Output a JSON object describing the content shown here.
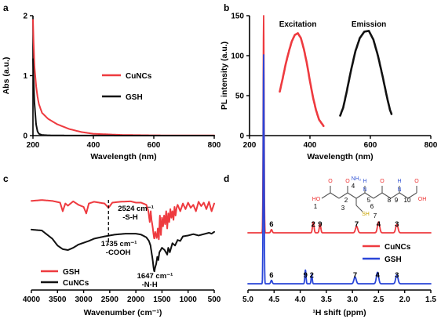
{
  "colors": {
    "red": "#ee3a3f",
    "black": "#111111",
    "blue": "#2a46d8"
  },
  "panels": {
    "a": {
      "label": "a",
      "xlabel": "Wavelength (nm)",
      "ylabel": "Abs (a.u.)",
      "xticks": [
        "200",
        "400",
        "600",
        "800"
      ],
      "yticks": [
        "0",
        "1",
        "2"
      ]
    },
    "b": {
      "label": "b",
      "xlabel": "Wavelength (nm)",
      "ylabel": "PL intensity (a.u.)",
      "xticks": [
        "200",
        "400",
        "600",
        "800"
      ],
      "yticks": [
        "0",
        "50",
        "100",
        "150"
      ]
    },
    "c": {
      "label": "c",
      "xlabel": "Wavenumber (cm⁻¹)",
      "xticks": [
        "4000",
        "3500",
        "3000",
        "2500",
        "2000",
        "1500",
        "1000",
        "500"
      ]
    },
    "d": {
      "label": "d",
      "xlabel": "¹H shift (ppm)",
      "xticks": [
        "5.0",
        "4.5",
        "4.0",
        "3.5",
        "3.0",
        "2.5",
        "2.0",
        "1.5"
      ]
    }
  },
  "chart_data": [
    {
      "panel": "a",
      "type": "line",
      "xlabel": "Wavelength (nm)",
      "ylabel": "Abs (a.u.)",
      "xlim": [
        200,
        800
      ],
      "ylim": [
        0,
        2
      ],
      "grid": false,
      "legend": "right",
      "series": [
        {
          "name": "CuNCs",
          "color": "red",
          "x": [
            200,
            202,
            205,
            210,
            215,
            220,
            230,
            250,
            280,
            320,
            360,
            400,
            500,
            600,
            700,
            800
          ],
          "y": [
            1.93,
            1.55,
            1.15,
            0.85,
            0.65,
            0.52,
            0.38,
            0.28,
            0.19,
            0.11,
            0.06,
            0.03,
            0.01,
            0.005,
            0.003,
            0.002
          ]
        },
        {
          "name": "GSH",
          "color": "black",
          "x": [
            200,
            202,
            205,
            210,
            215,
            220,
            230,
            250,
            300,
            400,
            600,
            800
          ],
          "y": [
            1.28,
            0.95,
            0.55,
            0.2,
            0.07,
            0.03,
            0.01,
            0.005,
            0.002,
            0.001,
            0.0,
            0.0
          ]
        }
      ]
    },
    {
      "panel": "b",
      "type": "line",
      "xlabel": "Wavelength (nm)",
      "ylabel": "PL intensity (a.u.)",
      "xlim": [
        200,
        800
      ],
      "ylim": [
        0,
        150
      ],
      "grid": false,
      "series": [
        {
          "name": "Excitation",
          "color": "red",
          "x": [
            300,
            310,
            320,
            330,
            340,
            350,
            360,
            370,
            380,
            390,
            400,
            410,
            420,
            430,
            445
          ],
          "y": [
            55,
            72,
            90,
            105,
            118,
            126,
            128,
            122,
            108,
            90,
            68,
            48,
            32,
            20,
            12
          ]
        },
        {
          "name": "Emission",
          "color": "black",
          "x": [
            500,
            510,
            520,
            535,
            550,
            565,
            580,
            595,
            610,
            625,
            640,
            655,
            665,
            670
          ],
          "y": [
            25,
            35,
            52,
            80,
            105,
            122,
            130,
            131,
            120,
            100,
            75,
            48,
            32,
            27
          ]
        }
      ]
    },
    {
      "panel": "c",
      "type": "line",
      "xlabel": "Wavenumber (cm⁻¹)",
      "xlim": [
        4000,
        500
      ],
      "grid": false,
      "legend": "bottom-left",
      "series": [
        {
          "name": "GSH",
          "color": "red",
          "x": [
            4000,
            3800,
            3600,
            3450,
            3400,
            3350,
            3300,
            3200,
            3100,
            3000,
            2950,
            2900,
            2800,
            2700,
            2600,
            2524,
            2450,
            2300,
            2100,
            2000,
            1900,
            1800,
            1760,
            1735,
            1715,
            1700,
            1680,
            1660,
            1647,
            1630,
            1600,
            1580,
            1560,
            1540,
            1520,
            1500,
            1480,
            1460,
            1440,
            1420,
            1400,
            1380,
            1360,
            1340,
            1320,
            1300,
            1280,
            1260,
            1240,
            1220,
            1200,
            1150,
            1100,
            1050,
            1000,
            950,
            900,
            850,
            800,
            750,
            700,
            650,
            600,
            550,
            500
          ],
          "y": [
            0.94,
            0.96,
            0.94,
            0.9,
            0.7,
            0.88,
            0.83,
            0.93,
            0.85,
            0.8,
            0.65,
            0.88,
            0.92,
            0.9,
            0.88,
            0.78,
            0.9,
            0.92,
            0.93,
            0.9,
            0.9,
            0.85,
            0.7,
            0.45,
            0.7,
            0.5,
            0.35,
            0.15,
            0.05,
            0.22,
            0.08,
            0.3,
            0.05,
            0.6,
            0.15,
            0.55,
            0.35,
            0.6,
            0.4,
            0.7,
            0.3,
            0.65,
            0.45,
            0.75,
            0.55,
            0.7,
            0.5,
            0.8,
            0.6,
            0.78,
            0.85,
            0.7,
            0.88,
            0.75,
            0.9,
            0.78,
            0.85,
            0.7,
            0.92,
            0.82,
            0.9,
            0.75,
            0.92,
            0.7,
            0.88
          ]
        },
        {
          "name": "CuNCs",
          "color": "black",
          "x": [
            4000,
            3800,
            3600,
            3500,
            3400,
            3300,
            3200,
            3100,
            3000,
            2900,
            2800,
            2600,
            2400,
            2200,
            2000,
            1900,
            1800,
            1750,
            1720,
            1700,
            1680,
            1660,
            1647,
            1630,
            1610,
            1590,
            1570,
            1550,
            1500,
            1450,
            1400,
            1380,
            1350,
            1300,
            1250,
            1200,
            1150,
            1100,
            1000,
            900,
            800,
            700,
            600,
            550,
            500
          ],
          "y": [
            0.95,
            0.93,
            0.75,
            0.6,
            0.52,
            0.5,
            0.55,
            0.62,
            0.66,
            0.7,
            0.75,
            0.8,
            0.84,
            0.86,
            0.86,
            0.84,
            0.78,
            0.7,
            0.6,
            0.45,
            0.3,
            0.1,
            0.02,
            0.12,
            0.2,
            0.35,
            0.28,
            0.45,
            0.55,
            0.5,
            0.4,
            0.55,
            0.45,
            0.65,
            0.6,
            0.72,
            0.7,
            0.8,
            0.82,
            0.85,
            0.82,
            0.85,
            0.88,
            0.86,
            0.9
          ]
        }
      ],
      "annotations": [
        {
          "at": 2524,
          "lines": [
            "2524 cm⁻¹",
            "-S-H"
          ]
        },
        {
          "at": 1735,
          "lines": [
            "1735 cm⁻¹",
            "-COOH"
          ]
        },
        {
          "at": 1647,
          "lines": [
            "1647 cm⁻¹",
            "-N-H"
          ]
        }
      ]
    },
    {
      "panel": "d",
      "type": "line",
      "xlabel": "¹H shift (ppm)",
      "xlim": [
        5.0,
        1.5
      ],
      "grid": false,
      "legend": "right",
      "series": [
        {
          "name": "CuNCs",
          "color": "red",
          "peaks": [
            {
              "ppm": 4.7,
              "h": 1.0,
              "w": 0.012
            },
            {
              "ppm": 4.55,
              "h": 0.015,
              "w": 0.02,
              "label": "6"
            },
            {
              "ppm": 3.75,
              "h": 0.05,
              "w": 0.02,
              "label": "2"
            },
            {
              "ppm": 3.62,
              "h": 0.04,
              "w": 0.02,
              "label": "9"
            },
            {
              "ppm": 2.92,
              "h": 0.03,
              "w": 0.03,
              "label": "7"
            },
            {
              "ppm": 2.5,
              "h": 0.05,
              "w": 0.03,
              "label": "4"
            },
            {
              "ppm": 2.15,
              "h": 0.04,
              "w": 0.03,
              "label": "3"
            }
          ]
        },
        {
          "name": "GSH",
          "color": "blue",
          "peaks": [
            {
              "ppm": 4.7,
              "h": 1.0,
              "w": 0.012
            },
            {
              "ppm": 4.55,
              "h": 0.015,
              "w": 0.02,
              "label": "6"
            },
            {
              "ppm": 3.9,
              "h": 0.06,
              "w": 0.015,
              "label": "9"
            },
            {
              "ppm": 3.78,
              "h": 0.04,
              "w": 0.015,
              "label": "2"
            },
            {
              "ppm": 2.95,
              "h": 0.03,
              "w": 0.03,
              "label": "7"
            },
            {
              "ppm": 2.52,
              "h": 0.05,
              "w": 0.03,
              "label": "4"
            },
            {
              "ppm": 2.15,
              "h": 0.04,
              "w": 0.03,
              "label": "3"
            }
          ]
        }
      ],
      "structure": {
        "atoms": [
          "HO",
          "O",
          "NH₂",
          "O",
          "H",
          "N",
          "O",
          "H",
          "N",
          "O",
          "OH",
          "SH"
        ],
        "numbers": [
          "1",
          "2",
          "3",
          "4",
          "5",
          "6",
          "7",
          "8",
          "9",
          "10"
        ]
      }
    }
  ]
}
